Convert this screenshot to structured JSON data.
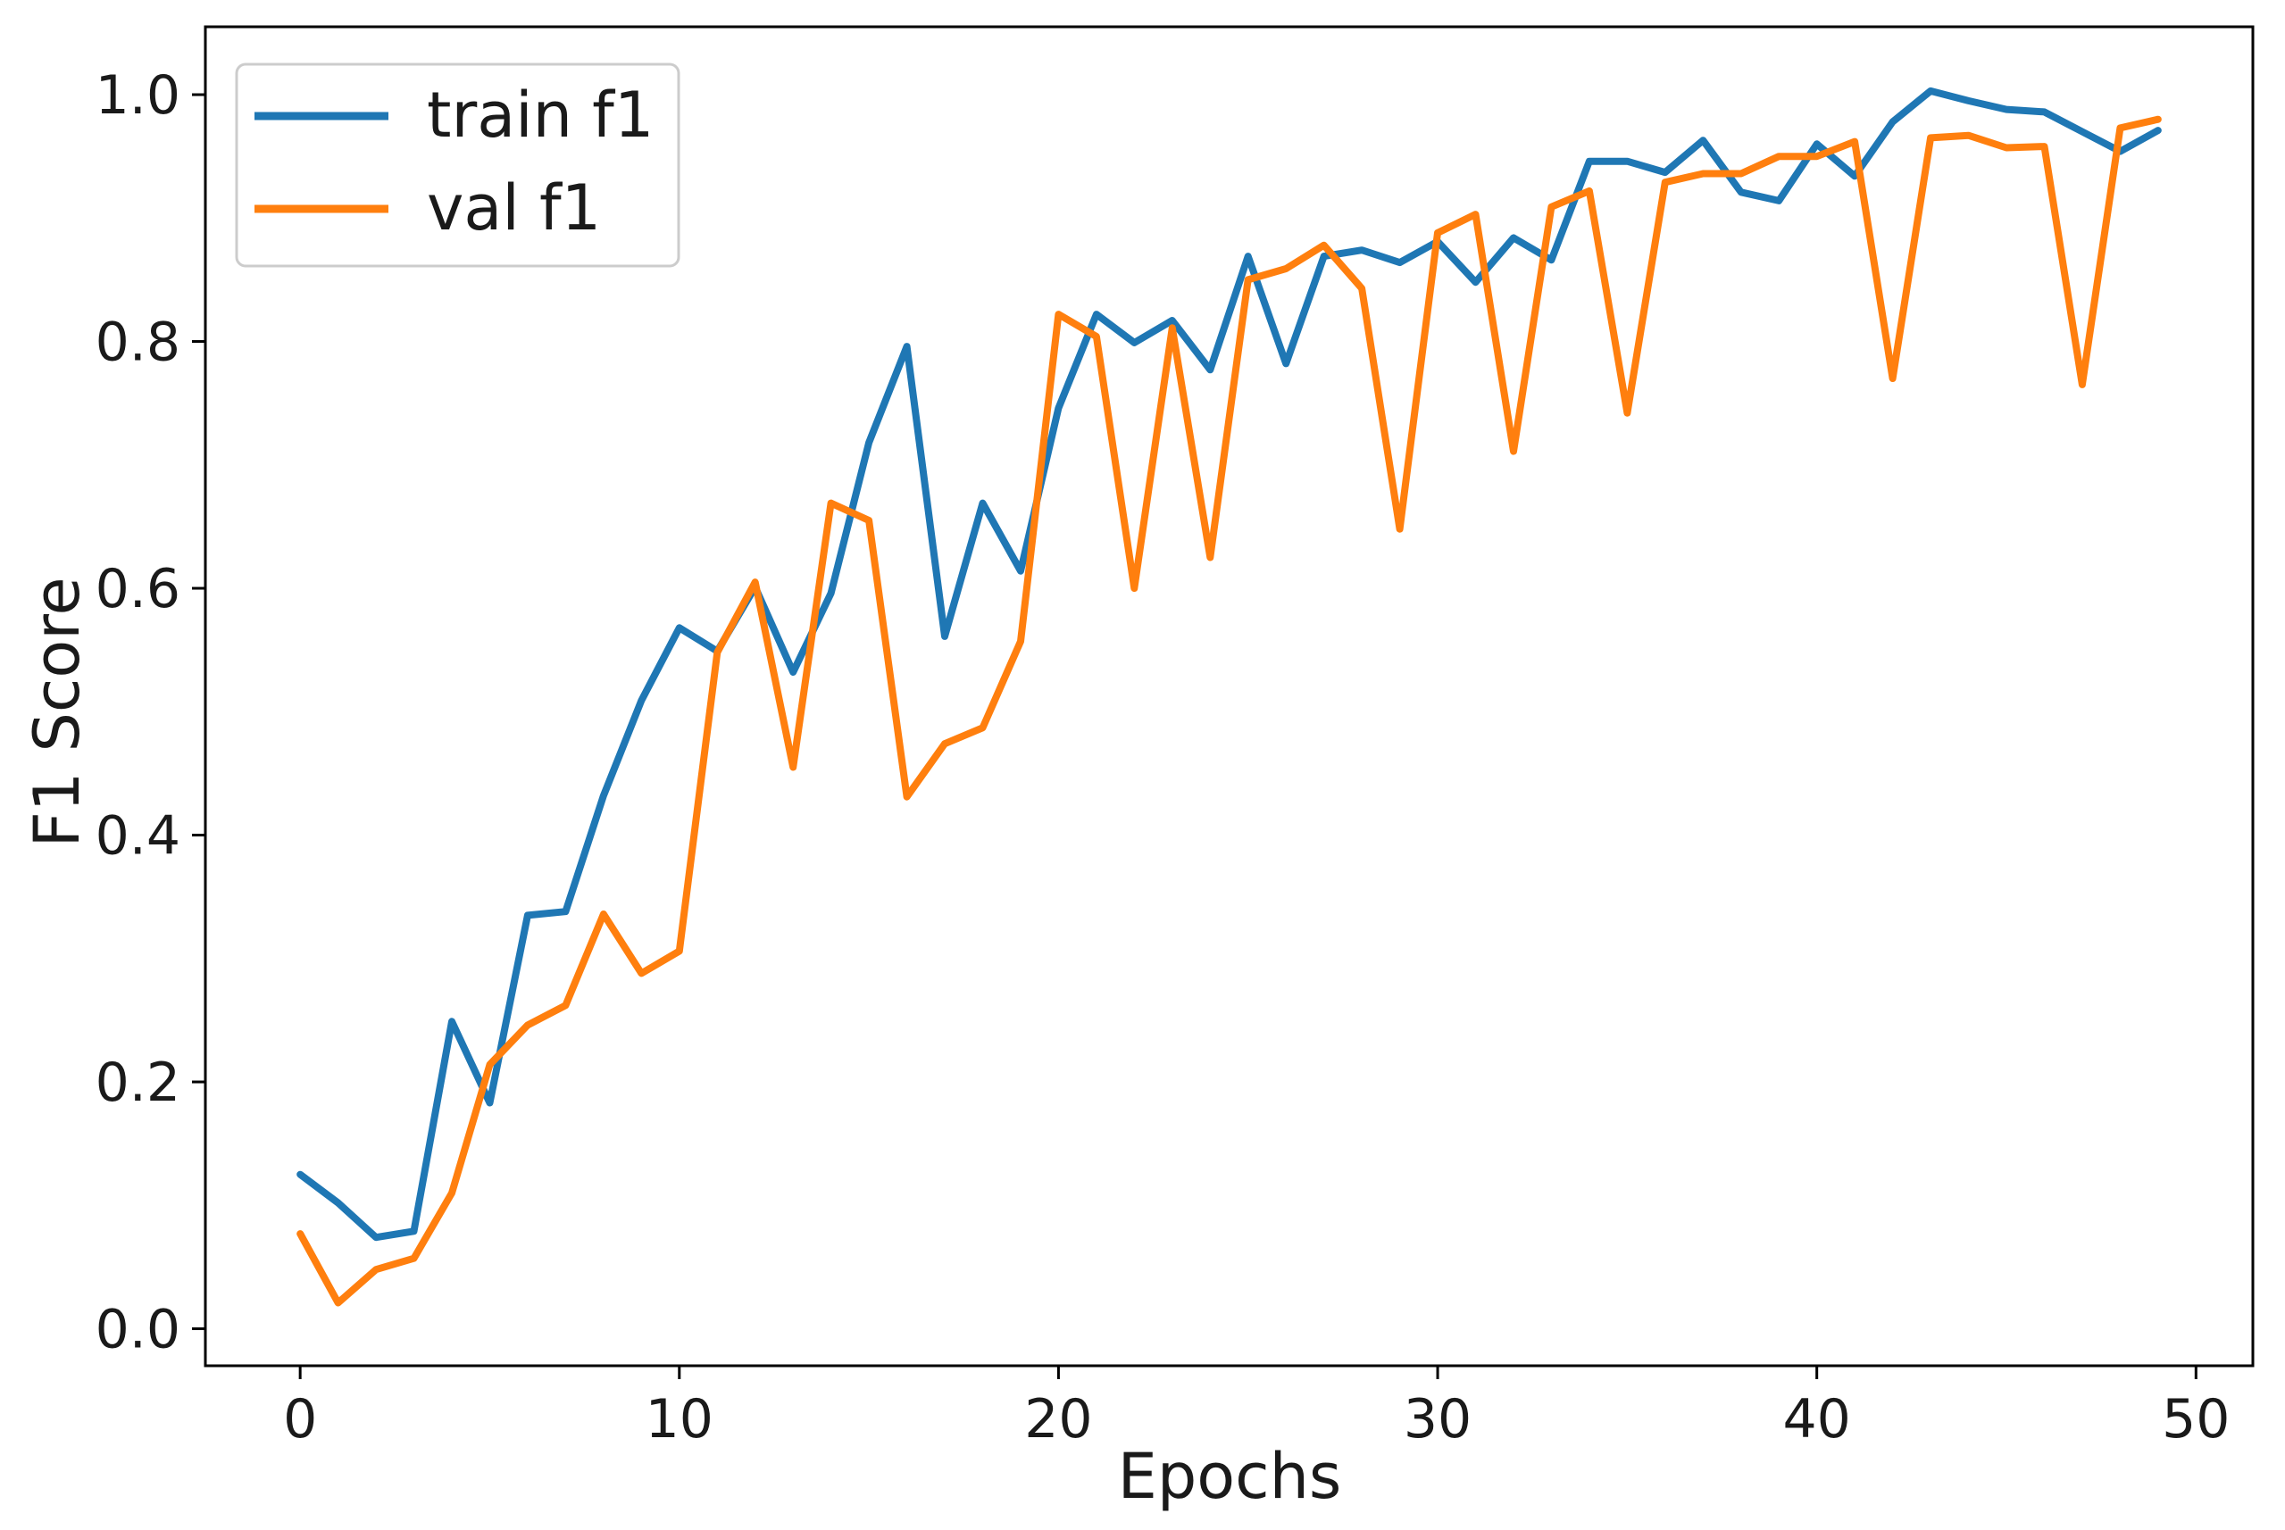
{
  "chart_data": {
    "type": "line",
    "title": "",
    "xlabel": "Epochs",
    "ylabel": "F1 Score",
    "xlim": [
      -2.5,
      51.5
    ],
    "ylim": [
      -0.03,
      1.055
    ],
    "xticks": [
      0,
      10,
      20,
      30,
      40,
      50
    ],
    "yticks": [
      0.0,
      0.2,
      0.4,
      0.6,
      0.8,
      1.0
    ],
    "ytick_labels": [
      "0.0",
      "0.2",
      "0.4",
      "0.6",
      "0.8",
      "1.0"
    ],
    "grid": false,
    "legend_position": "upper-left",
    "x": [
      0,
      1,
      2,
      3,
      4,
      5,
      6,
      7,
      8,
      9,
      10,
      11,
      12,
      13,
      14,
      15,
      16,
      17,
      18,
      19,
      20,
      21,
      22,
      23,
      24,
      25,
      26,
      27,
      28,
      29,
      30,
      31,
      32,
      33,
      34,
      35,
      36,
      37,
      38,
      39,
      40,
      41,
      42,
      43,
      44,
      45,
      46,
      47,
      48,
      49
    ],
    "series": [
      {
        "name": "train f1",
        "color": "#1f77b4",
        "values": [
          0.125,
          0.102,
          0.074,
          0.079,
          0.249,
          0.183,
          0.335,
          0.338,
          0.432,
          0.509,
          0.568,
          0.549,
          0.601,
          0.532,
          0.596,
          0.718,
          0.796,
          0.561,
          0.669,
          0.614,
          0.746,
          0.822,
          0.799,
          0.817,
          0.777,
          0.869,
          0.782,
          0.869,
          0.874,
          0.864,
          0.881,
          0.848,
          0.884,
          0.866,
          0.946,
          0.946,
          0.937,
          0.963,
          0.921,
          0.914,
          0.96,
          0.934,
          0.978,
          1.003,
          0.995,
          0.988,
          0.986,
          0.97,
          0.954,
          0.971
        ]
      },
      {
        "name": "val f1",
        "color": "#ff7f0e",
        "values": [
          0.077,
          0.021,
          0.048,
          0.057,
          0.11,
          0.214,
          0.246,
          0.262,
          0.336,
          0.288,
          0.306,
          0.548,
          0.605,
          0.455,
          0.669,
          0.655,
          0.431,
          0.474,
          0.487,
          0.557,
          0.822,
          0.804,
          0.6,
          0.811,
          0.625,
          0.85,
          0.859,
          0.878,
          0.843,
          0.648,
          0.888,
          0.903,
          0.711,
          0.909,
          0.922,
          0.742,
          0.929,
          0.936,
          0.936,
          0.95,
          0.95,
          0.962,
          0.77,
          0.965,
          0.967,
          0.957,
          0.958,
          0.765,
          0.973,
          0.98
        ]
      }
    ]
  }
}
